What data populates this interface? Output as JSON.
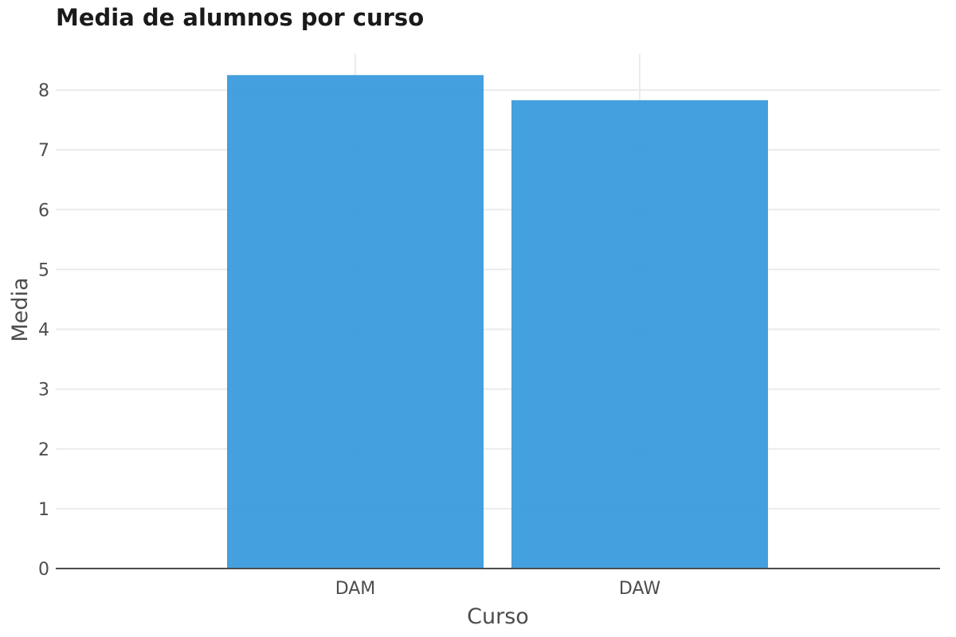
{
  "chart_data": {
    "type": "bar",
    "title": "Media de alumnos por curso",
    "xlabel": "Curso",
    "ylabel": "Media",
    "categories": [
      "DAM",
      "DAW"
    ],
    "series": [
      {
        "values": [
          8.25,
          7.83
        ]
      }
    ],
    "ylim": [
      0,
      8.6
    ],
    "yticks": [
      0,
      1,
      2,
      3,
      4,
      5,
      6,
      7,
      8
    ],
    "grid": true,
    "legend": "none",
    "bar_color": "#3498db",
    "grid_color": "#ebebeb",
    "axis_color": "#4d4d4d"
  }
}
